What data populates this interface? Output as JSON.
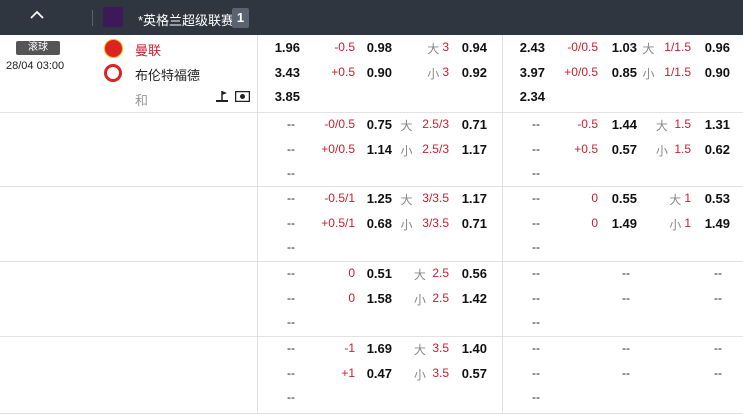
{
  "header": {
    "league": "*英格兰超级联赛",
    "count": "1",
    "collapse_icon": "chevron-up-icon",
    "league_icon": "premier-league-logo"
  },
  "match": {
    "status": "滚球",
    "time": "28/04 03:00",
    "home": "曼联",
    "away": "布伦特福德",
    "draw": "和",
    "home_color": "#c8202f"
  },
  "blocks": [
    {
      "lines": [
        [
          "1.96",
          "-0.5",
          "0.98",
          "大",
          "3",
          "0.94",
          "2.43",
          "-0/0.5",
          "1.03",
          "大",
          "1/1.5",
          "0.96"
        ],
        [
          "3.43",
          "+0.5",
          "0.90",
          "小",
          "3",
          "0.92",
          "3.97",
          "+0/0.5",
          "0.85",
          "小",
          "1/1.5",
          "0.90"
        ],
        [
          "3.85",
          "",
          "",
          "",
          "",
          "",
          "2.34",
          "",
          "",
          "",
          "",
          ""
        ]
      ]
    },
    {
      "lines": [
        [
          "--",
          "-0/0.5",
          "0.75",
          "大",
          "2.5/3",
          "0.71",
          "--",
          "-0.5",
          "1.44",
          "大",
          "1.5",
          "1.31"
        ],
        [
          "--",
          "+0/0.5",
          "1.14",
          "小",
          "2.5/3",
          "1.17",
          "--",
          "+0.5",
          "0.57",
          "小",
          "1.5",
          "0.62"
        ],
        [
          "--",
          "",
          "",
          "",
          "",
          "",
          "--",
          "",
          "",
          "",
          "",
          ""
        ]
      ]
    },
    {
      "lines": [
        [
          "--",
          "-0.5/1",
          "1.25",
          "大",
          "3/3.5",
          "1.17",
          "--",
          "0",
          "0.55",
          "大",
          "1",
          "0.53"
        ],
        [
          "--",
          "+0.5/1",
          "0.68",
          "小",
          "3/3.5",
          "0.71",
          "--",
          "0",
          "1.49",
          "小",
          "1",
          "1.49"
        ],
        [
          "--",
          "",
          "",
          "",
          "",
          "",
          "--",
          "",
          "",
          "",
          "",
          ""
        ]
      ]
    },
    {
      "lines": [
        [
          "--",
          "0",
          "0.51",
          "大",
          "2.5",
          "0.56",
          "--",
          "",
          "--",
          "",
          "",
          "--"
        ],
        [
          "--",
          "0",
          "1.58",
          "小",
          "2.5",
          "1.42",
          "--",
          "",
          "--",
          "",
          "",
          "--"
        ],
        [
          "--",
          "",
          "",
          "",
          "",
          "",
          "--",
          "",
          "",
          "",
          "",
          ""
        ]
      ]
    },
    {
      "lines": [
        [
          "--",
          "-1",
          "1.69",
          "大",
          "3.5",
          "1.40",
          "--",
          "",
          "--",
          "",
          "",
          "--"
        ],
        [
          "--",
          "+1",
          "0.47",
          "小",
          "3.5",
          "0.57",
          "--",
          "",
          "--",
          "",
          "",
          "--"
        ],
        [
          "--",
          "",
          "",
          "",
          "",
          "",
          "--",
          "",
          "",
          "",
          "",
          ""
        ]
      ]
    }
  ]
}
